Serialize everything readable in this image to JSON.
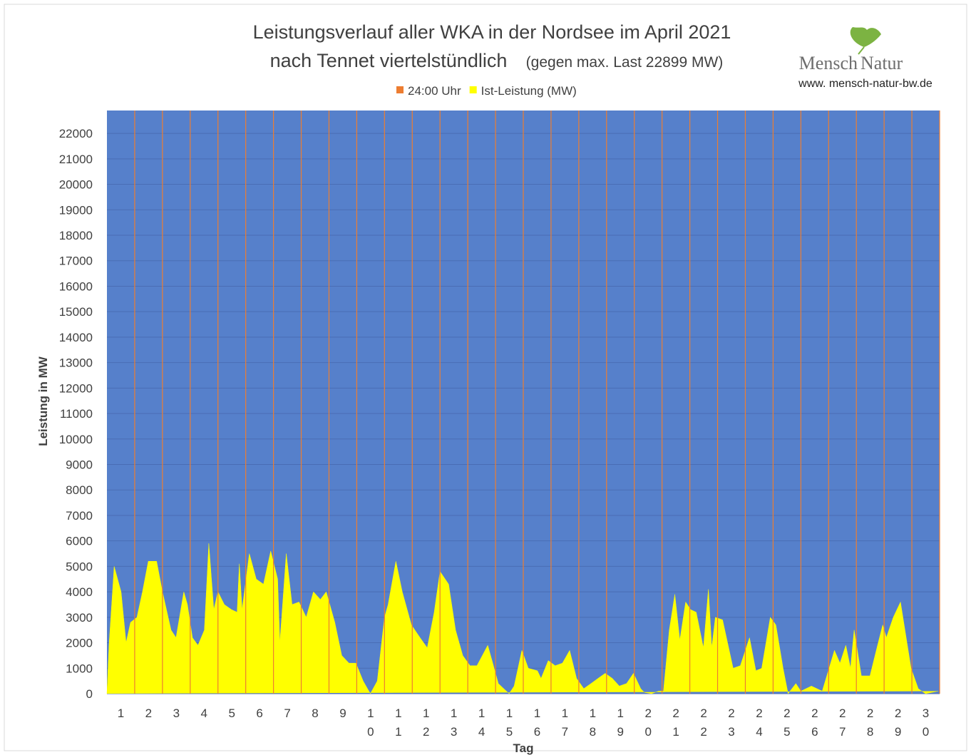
{
  "chart_data": {
    "type": "area",
    "title": "Leistungsverlauf aller WKA in der Nordsee im April 2021",
    "title_line2": "nach Tennet viertelstündlich",
    "subtitle": "(gegen max. Last 22899 MW)",
    "logo": {
      "word1": "Mensch",
      "word2": "Natur",
      "url": "www. mensch-natur-bw.de"
    },
    "ylabel": "Leistung in MW",
    "xlabel": "Tag",
    "xlim": [
      0,
      30
    ],
    "ylim": [
      0,
      22899
    ],
    "yticks": [
      0,
      1000,
      2000,
      3000,
      4000,
      5000,
      6000,
      7000,
      8000,
      9000,
      10000,
      11000,
      12000,
      13000,
      14000,
      15000,
      16000,
      17000,
      18000,
      19000,
      20000,
      21000,
      22000
    ],
    "xticks": [
      {
        "value": 0.5,
        "label": "1"
      },
      {
        "value": 1.5,
        "label": "2"
      },
      {
        "value": 2.5,
        "label": "3"
      },
      {
        "value": 3.5,
        "label": "4"
      },
      {
        "value": 4.5,
        "label": "5"
      },
      {
        "value": 5.5,
        "label": "6"
      },
      {
        "value": 6.5,
        "label": "7"
      },
      {
        "value": 7.5,
        "label": "8"
      },
      {
        "value": 8.5,
        "label": "9"
      },
      {
        "value": 9.5,
        "label": "10"
      },
      {
        "value": 10.5,
        "label": "11"
      },
      {
        "value": 11.5,
        "label": "12"
      },
      {
        "value": 12.5,
        "label": "13"
      },
      {
        "value": 13.5,
        "label": "14"
      },
      {
        "value": 14.5,
        "label": "15"
      },
      {
        "value": 15.5,
        "label": "16"
      },
      {
        "value": 16.5,
        "label": "17"
      },
      {
        "value": 17.5,
        "label": "18"
      },
      {
        "value": 18.5,
        "label": "19"
      },
      {
        "value": 19.5,
        "label": "20"
      },
      {
        "value": 20.5,
        "label": "21"
      },
      {
        "value": 21.5,
        "label": "22"
      },
      {
        "value": 22.5,
        "label": "23"
      },
      {
        "value": 23.5,
        "label": "24"
      },
      {
        "value": 24.5,
        "label": "25"
      },
      {
        "value": 25.5,
        "label": "26"
      },
      {
        "value": 26.5,
        "label": "27"
      },
      {
        "value": 27.5,
        "label": "28"
      },
      {
        "value": 28.5,
        "label": "29"
      },
      {
        "value": 29.5,
        "label": "30"
      }
    ],
    "grid": true,
    "background": "#5680cb",
    "series": [
      {
        "name": "24:00 Uhr",
        "color": "#ed7d31",
        "kind": "vline",
        "x": [
          1,
          2,
          3,
          4,
          5,
          6,
          7,
          8,
          9,
          10,
          11,
          12,
          13,
          14,
          15,
          16,
          17,
          18,
          19,
          20,
          21,
          22,
          23,
          24,
          25,
          26,
          27,
          28,
          29,
          30
        ],
        "values": [
          22899,
          22899,
          22899,
          22899,
          22899,
          22899,
          22899,
          22899,
          22899,
          22899,
          22899,
          22899,
          22899,
          22899,
          22899,
          22899,
          22899,
          22899,
          22899,
          22899,
          22899,
          22899,
          22899,
          22899,
          22899,
          22899,
          22899,
          22899,
          22899,
          22899
        ]
      },
      {
        "name": "Ist-Leistung (MW)",
        "color": "#ffff00",
        "kind": "area",
        "x": [
          0,
          0.08,
          0.26,
          0.51,
          0.69,
          0.85,
          1.08,
          1.28,
          1.49,
          1.79,
          2.0,
          2.31,
          2.49,
          2.77,
          2.9,
          3.08,
          3.28,
          3.51,
          3.67,
          3.85,
          4.0,
          4.23,
          4.49,
          4.69,
          4.77,
          4.87,
          5.13,
          5.38,
          5.64,
          5.9,
          6.15,
          6.23,
          6.46,
          6.67,
          6.92,
          7.18,
          7.44,
          7.69,
          7.9,
          8.21,
          8.46,
          8.72,
          8.97,
          9.23,
          9.49,
          9.74,
          10.0,
          10.13,
          10.41,
          10.64,
          10.97,
          11.28,
          11.54,
          11.79,
          12.0,
          12.31,
          12.56,
          12.82,
          13.08,
          13.33,
          13.72,
          13.9,
          14.1,
          14.49,
          14.67,
          14.95,
          15.18,
          15.51,
          15.64,
          15.9,
          16.15,
          16.41,
          16.67,
          16.92,
          17.18,
          17.44,
          17.69,
          17.95,
          18.21,
          18.46,
          18.72,
          18.97,
          19.23,
          19.36,
          19.62,
          19.87,
          20.05,
          20.26,
          20.46,
          20.64,
          20.85,
          21.03,
          21.23,
          21.49,
          21.67,
          21.79,
          21.92,
          22.18,
          22.56,
          22.82,
          23.15,
          23.38,
          23.59,
          23.9,
          24.1,
          24.36,
          24.54,
          24.82,
          25.0,
          25.38,
          25.77,
          26.21,
          26.41,
          26.62,
          26.79,
          26.92,
          27.18,
          27.49,
          27.74,
          27.95,
          28.08,
          28.33,
          28.59,
          28.97,
          29.23,
          29.49,
          29.95
        ],
        "values": [
          0,
          2000,
          5000,
          4000,
          2000,
          2800,
          3000,
          4000,
          5200,
          5200,
          4000,
          2500,
          2200,
          4000,
          3500,
          2200,
          1900,
          2500,
          5900,
          3300,
          4000,
          3500,
          3300,
          3200,
          5100,
          3300,
          5500,
          4500,
          4300,
          5600,
          4500,
          2000,
          5500,
          3500,
          3600,
          3000,
          4000,
          3700,
          4000,
          2800,
          1500,
          1200,
          1200,
          500,
          0,
          500,
          3000,
          3500,
          5200,
          4000,
          2700,
          2200,
          1800,
          3200,
          4800,
          4300,
          2500,
          1500,
          1100,
          1100,
          1900,
          1200,
          400,
          0,
          300,
          1700,
          1000,
          900,
          600,
          1300,
          1100,
          1200,
          1700,
          600,
          200,
          400,
          600,
          800,
          600,
          300,
          400,
          800,
          200,
          50,
          0,
          100,
          100,
          2500,
          3900,
          2100,
          3600,
          3300,
          3200,
          1800,
          4100,
          1800,
          3000,
          2900,
          1000,
          1100,
          2200,
          900,
          1000,
          3000,
          2700,
          1000,
          0,
          400,
          100,
          300,
          100,
          1700,
          1200,
          1900,
          1000,
          2500,
          700,
          700,
          1800,
          2700,
          2200,
          3000,
          3600,
          1000,
          200,
          0,
          100
        ]
      }
    ]
  }
}
